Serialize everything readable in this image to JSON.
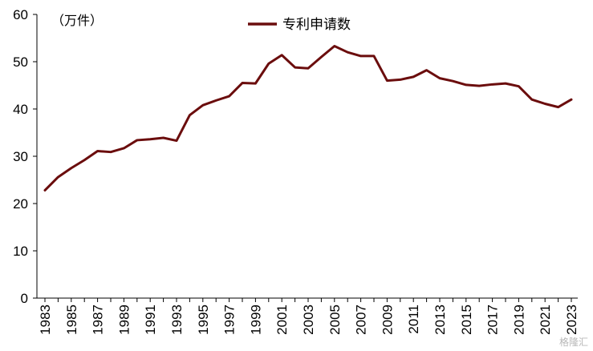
{
  "chart_data": {
    "type": "line",
    "title": "",
    "unit_label": "（万件）",
    "xlabel": "",
    "ylabel": "",
    "ylim": [
      0,
      60
    ],
    "yticks": [
      0,
      10,
      20,
      30,
      40,
      50,
      60
    ],
    "grid": false,
    "legend_position": "top-center",
    "x": [
      1983,
      1984,
      1985,
      1986,
      1987,
      1988,
      1989,
      1990,
      1991,
      1992,
      1993,
      1994,
      1995,
      1996,
      1997,
      1998,
      1999,
      2000,
      2001,
      2002,
      2003,
      2004,
      2005,
      2006,
      2007,
      2008,
      2009,
      2010,
      2011,
      2012,
      2013,
      2014,
      2015,
      2016,
      2017,
      2018,
      2019,
      2020,
      2021,
      2022,
      2023
    ],
    "xtick_labels": [
      "1983",
      "1985",
      "1987",
      "1989",
      "1991",
      "1993",
      "1995",
      "1997",
      "1999",
      "2001",
      "2003",
      "2005",
      "2007",
      "2009",
      "2011",
      "2013",
      "2015",
      "2017",
      "2019",
      "2021",
      "2023"
    ],
    "series": [
      {
        "name": "专利申请数",
        "color": "#6b0d0d",
        "values": [
          22.8,
          25.6,
          27.5,
          29.2,
          31.1,
          30.9,
          31.7,
          33.4,
          33.6,
          33.9,
          33.3,
          38.7,
          40.8,
          41.8,
          42.7,
          45.5,
          45.4,
          49.6,
          51.4,
          48.8,
          48.6,
          51.0,
          53.3,
          52.0,
          51.2,
          51.2,
          46.0,
          46.2,
          46.8,
          48.2,
          46.5,
          45.9,
          45.1,
          44.9,
          45.2,
          45.4,
          44.8,
          42.0,
          41.1,
          40.4,
          42.0
        ]
      }
    ]
  },
  "watermark": "格隆汇"
}
